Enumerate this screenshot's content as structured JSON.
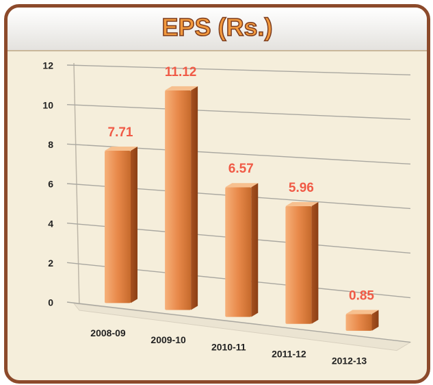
{
  "chart_data": {
    "type": "bar",
    "title": "EPS (Rs.)",
    "categories": [
      "2008-09",
      "2009-10",
      "2010-11",
      "2011-12",
      "2012-13"
    ],
    "values": [
      7.71,
      11.12,
      6.57,
      5.96,
      0.85
    ],
    "color": "#e8894a",
    "value_label_color": "#f05a46",
    "ylim": [
      0,
      12
    ],
    "yticks": [
      0,
      2,
      4,
      6,
      8,
      10,
      12
    ],
    "grid": true
  }
}
